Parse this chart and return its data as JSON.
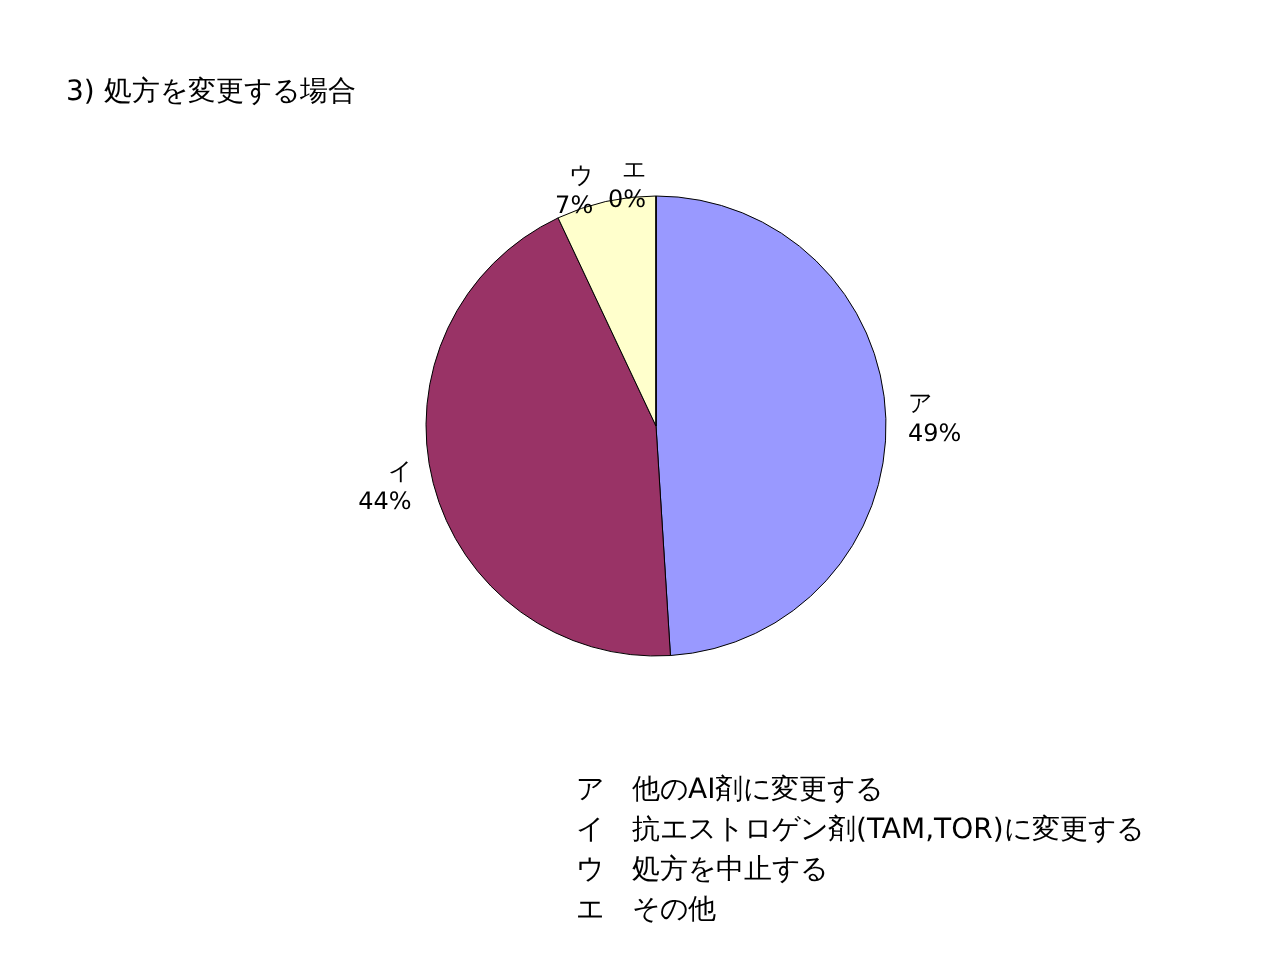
{
  "chart_data": {
    "type": "pie",
    "title": "3) 処方を変更する場合",
    "categories": [
      "ア",
      "イ",
      "ウ",
      "エ"
    ],
    "values": [
      49,
      44,
      7,
      0
    ],
    "value_labels": [
      "49%",
      "44%",
      "7%",
      "0%"
    ],
    "colors": [
      "#9999ff",
      "#993366",
      "#ffffcc",
      "#ccffff"
    ],
    "annotations": [
      "ア　他のAI剤に変更する",
      "イ　抗エストロゲン剤(TAM,TOR)に変更する",
      "ウ　処方を中止する",
      "エ　その他"
    ]
  }
}
